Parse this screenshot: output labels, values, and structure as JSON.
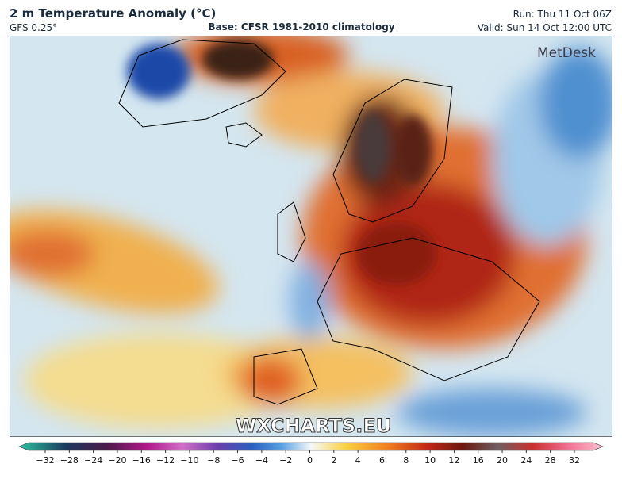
{
  "header": {
    "title": "2 m Temperature Anomaly (°C)",
    "model": "GFS 0.25°",
    "base": "Base: CFSR 1981-2010 climatology",
    "run": "Run: Thu 11 Oct 06Z",
    "valid": "Valid: Sun 14 Oct 12:00 UTC"
  },
  "logo": "MetDesk",
  "watermark": "WXCHARTS.EU",
  "colorbar": {
    "ticks": [
      {
        "value": -32,
        "label": "−32"
      },
      {
        "value": -28,
        "label": "−28"
      },
      {
        "value": -24,
        "label": "−24"
      },
      {
        "value": -20,
        "label": "−20"
      },
      {
        "value": -16,
        "label": "−16"
      },
      {
        "value": -12,
        "label": "−12"
      },
      {
        "value": -10,
        "label": "−10"
      },
      {
        "value": -8,
        "label": "−8"
      },
      {
        "value": -6,
        "label": "−6"
      },
      {
        "value": -4,
        "label": "−4"
      },
      {
        "value": -2,
        "label": "−2"
      },
      0,
      2,
      4,
      6,
      8,
      10,
      12,
      16,
      20,
      24,
      28,
      32
    ]
  }
}
